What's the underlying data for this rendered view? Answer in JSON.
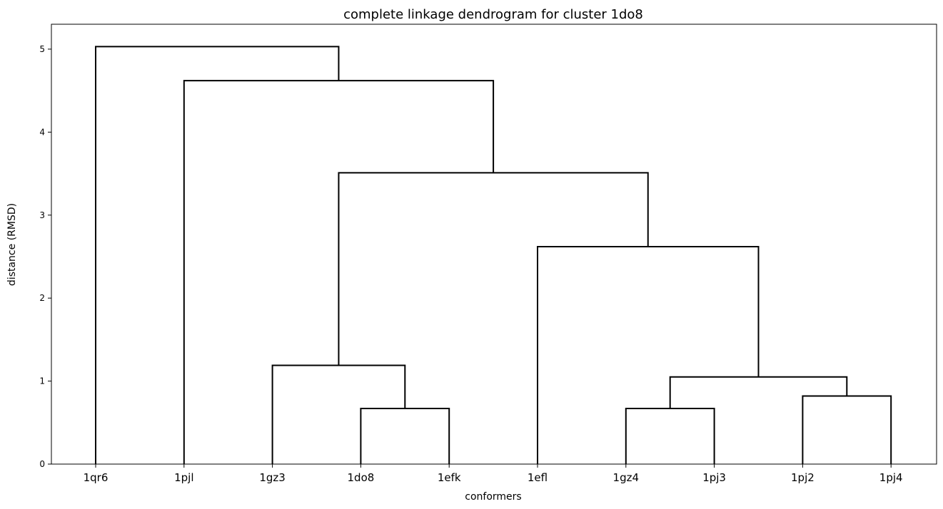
{
  "chart_data": {
    "type": "dendrogram",
    "title": "complete linkage dendrogram for cluster 1do8",
    "xlabel": "conformers",
    "ylabel": "distance (RMSD)",
    "ylim": [
      0,
      5.3
    ],
    "yticks": [
      0,
      1,
      2,
      3,
      4,
      5
    ],
    "grid": false,
    "leaves": [
      "1qr6",
      "1pjl",
      "1gz3",
      "1do8",
      "1efk",
      "1efl",
      "1gz4",
      "1pj3",
      "1pj2",
      "1pj4"
    ],
    "merges": [
      {
        "left": "1do8",
        "right": "1efk",
        "height": 0.67
      },
      {
        "left": "1gz4",
        "right": "1pj3",
        "height": 0.67
      },
      {
        "left": "1pj2",
        "right": "1pj4",
        "height": 0.82
      },
      {
        "left": "1gz4+1pj3",
        "right": "1pj2+1pj4",
        "height": 1.05
      },
      {
        "left": "1gz3",
        "right": "1do8+1efk",
        "height": 1.19
      },
      {
        "left": "1efl",
        "right": "1gz4+1pj3+1pj2+1pj4",
        "height": 2.62
      },
      {
        "left": "1gz3+1do8+1efk",
        "right": "1efl+1gz4+1pj3+1pj2+1pj4",
        "height": 3.51
      },
      {
        "left": "1pjl",
        "right": "1gz3+1do8+1efk+1efl+1gz4+1pj3+1pj2+1pj4",
        "height": 4.62
      },
      {
        "left": "1qr6",
        "right": "all-others",
        "height": 5.03
      }
    ]
  }
}
